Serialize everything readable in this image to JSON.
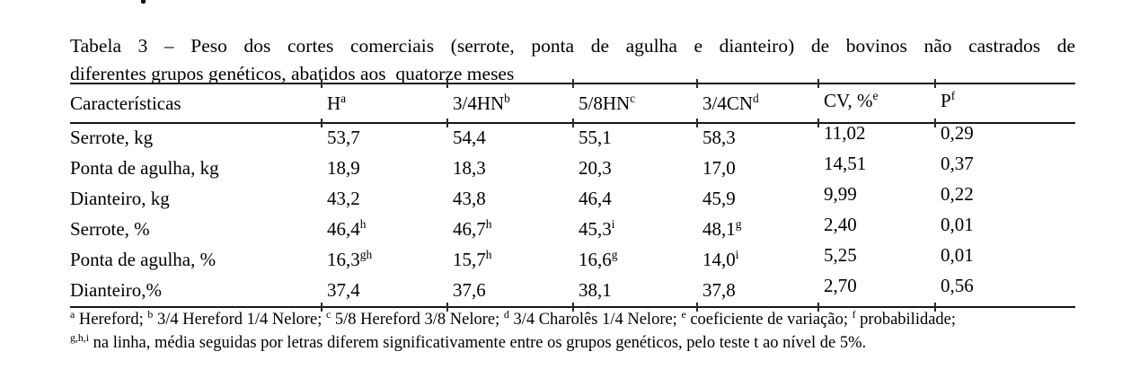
{
  "title": {
    "line1": "Tabela 3 – Peso dos cortes comerciais (serrote, ponta de agulha e dianteiro) de bovinos não castrados de",
    "line2": "diferentes grupos genéticos, abatidos aos  quatorze meses"
  },
  "table": {
    "headers": [
      {
        "text": "Características",
        "sup": ""
      },
      {
        "text": "H",
        "sup": "a"
      },
      {
        "text": "3/4HN",
        "sup": "b"
      },
      {
        "text": "5/8HN",
        "sup": "c"
      },
      {
        "text": "3/4CN",
        "sup": "d"
      },
      {
        "text": "CV, %",
        "sup": "e"
      },
      {
        "text": "P",
        "sup": "f"
      }
    ],
    "rows": [
      {
        "label": "Serrote, kg",
        "cells": [
          {
            "text": "53,7",
            "sup": ""
          },
          {
            "text": "54,4",
            "sup": ""
          },
          {
            "text": "55,1",
            "sup": ""
          },
          {
            "text": "58,3",
            "sup": ""
          },
          {
            "text": "11,02",
            "sup": ""
          },
          {
            "text": "0,29",
            "sup": ""
          }
        ]
      },
      {
        "label": "Ponta de agulha, kg",
        "cells": [
          {
            "text": "18,9",
            "sup": ""
          },
          {
            "text": "18,3",
            "sup": ""
          },
          {
            "text": "20,3",
            "sup": ""
          },
          {
            "text": "17,0",
            "sup": ""
          },
          {
            "text": "14,51",
            "sup": ""
          },
          {
            "text": "0,37",
            "sup": ""
          }
        ]
      },
      {
        "label": "Dianteiro, kg",
        "cells": [
          {
            "text": "43,2",
            "sup": ""
          },
          {
            "text": "43,8",
            "sup": ""
          },
          {
            "text": "46,4",
            "sup": ""
          },
          {
            "text": "45,9",
            "sup": ""
          },
          {
            "text": "9,99",
            "sup": ""
          },
          {
            "text": "0,22",
            "sup": ""
          }
        ]
      },
      {
        "label": "Serrote, %",
        "cells": [
          {
            "text": "46,4",
            "sup": "h"
          },
          {
            "text": "46,7",
            "sup": "h"
          },
          {
            "text": "45,3",
            "sup": "i"
          },
          {
            "text": "48,1",
            "sup": "g"
          },
          {
            "text": "2,40",
            "sup": ""
          },
          {
            "text": "0,01",
            "sup": ""
          }
        ]
      },
      {
        "label": "Ponta de agulha, %",
        "cells": [
          {
            "text": "16,3",
            "sup": "gh"
          },
          {
            "text": "15,7",
            "sup": "h"
          },
          {
            "text": "16,6",
            "sup": "g"
          },
          {
            "text": "14,0",
            "sup": "i"
          },
          {
            "text": "5,25",
            "sup": ""
          },
          {
            "text": "0,01",
            "sup": ""
          }
        ]
      },
      {
        "label": "Dianteiro,%",
        "cells": [
          {
            "text": "37,4",
            "sup": ""
          },
          {
            "text": "37,6",
            "sup": ""
          },
          {
            "text": "38,1",
            "sup": ""
          },
          {
            "text": "37,8",
            "sup": ""
          },
          {
            "text": "2,70",
            "sup": ""
          },
          {
            "text": "0,56",
            "sup": ""
          }
        ]
      }
    ]
  },
  "footnotes": {
    "line1": [
      {
        "sup": "a",
        "text": " Hereford; "
      },
      {
        "sup": "b",
        "text": " 3/4 Hereford 1/4 Nelore; "
      },
      {
        "sup": "c",
        "text": " 5/8 Hereford 3/8 Nelore; "
      },
      {
        "sup": "d",
        "text": " 3/4 Charolês 1/4 Nelore; "
      },
      {
        "sup": "e",
        "text": " coeficiente de variação; "
      },
      {
        "sup": "f",
        "text": " probabilidade;"
      }
    ],
    "line2": {
      "sup": "g,h,i",
      "text": " na linha, média seguidas por letras diferem significativamente entre os grupos genéticos, pelo teste t ao nível de 5%."
    }
  }
}
